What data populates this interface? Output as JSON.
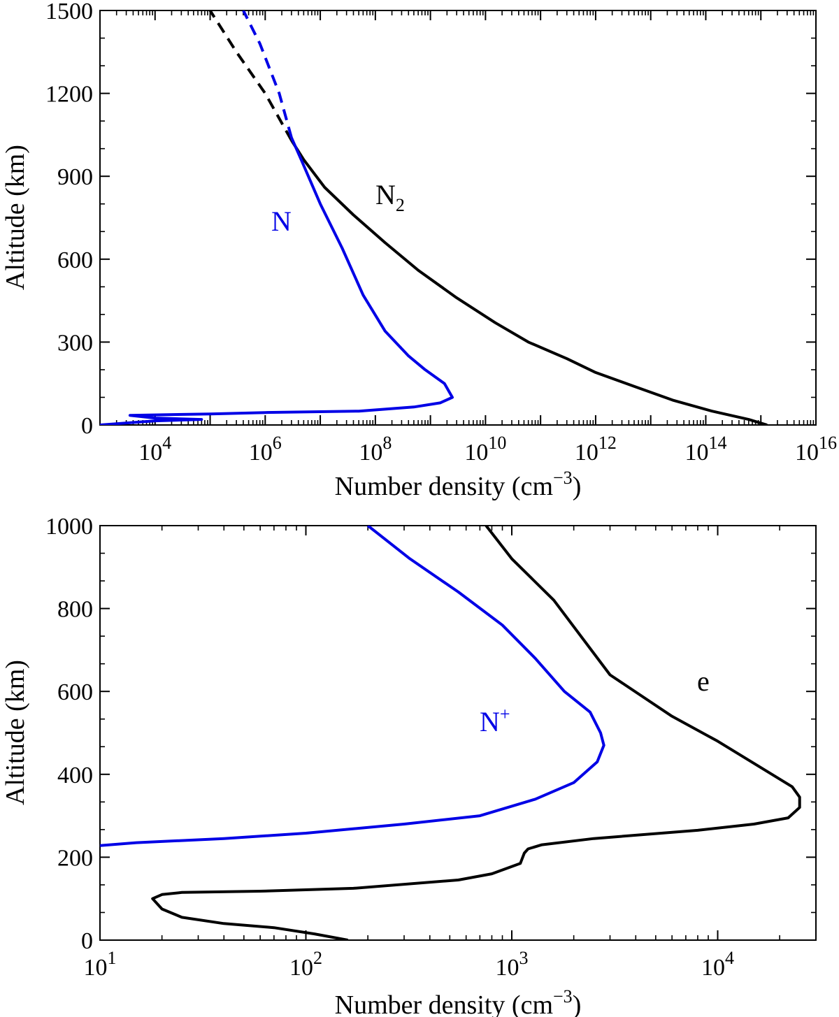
{
  "colors": {
    "black": "#000000",
    "blue": "#0000e6"
  },
  "chart_data": [
    {
      "type": "line",
      "xscale": "log",
      "xlim": [
        1000,
        1e+16
      ],
      "ylim": [
        0,
        1500
      ],
      "xlabel": "Number density (cm",
      "xlabel_sup": "−3",
      "xlabel_close": ")",
      "ylabel": "Altitude (km)",
      "yticks": [
        0,
        300,
        600,
        900,
        1200,
        1500
      ],
      "ytick_labels": [
        "0",
        "300",
        "600",
        "900",
        "1200",
        "1500"
      ],
      "xtick_exponents": [
        4,
        6,
        8,
        10,
        12,
        14,
        16
      ],
      "xtick_base": "10",
      "series": [
        {
          "name": "N2",
          "label_main": "N",
          "label_sub": "2",
          "color": "#000000",
          "x": [
            1300000000000000.0,
            600000000000000.0,
            130000000000000.0,
            25000000000000.0,
            5000000000000.0,
            1000000000000.0,
            300000000000.0,
            60000000000.0,
            15000000000.0,
            3000000000.0,
            600000000.0,
            150000000.0,
            40000000.0,
            12000000.0,
            5000000.0,
            3000000.0
          ],
          "y": [
            0,
            20,
            50,
            90,
            140,
            190,
            240,
            300,
            370,
            460,
            560,
            660,
            760,
            860,
            960,
            1030
          ],
          "extrap": {
            "x": [
              3000000.0,
              1000000.0,
              300000.0,
              100000.0
            ],
            "y": [
              1030,
              1200,
              1350,
              1500
            ]
          }
        },
        {
          "name": "N",
          "label_main": "N",
          "label_sub": "",
          "color": "#0000e6",
          "x": [
            1000,
            10000.0,
            70000.0,
            10000.0,
            3500,
            100000.0,
            1000000.0,
            50000000.0,
            500000000.0,
            1500000000.0,
            2500000000.0,
            1800000000.0,
            800000000.0,
            400000000.0,
            150000000.0,
            60000000.0,
            25000000.0,
            10000000.0,
            4500000.0,
            3000000.0
          ],
          "y": [
            0,
            15,
            20,
            25,
            35,
            40,
            45,
            50,
            65,
            80,
            100,
            150,
            200,
            250,
            340,
            470,
            640,
            800,
            960,
            1040
          ],
          "extrap": {
            "x": [
              3000000.0,
              1800000.0,
              800000.0,
              400000.0
            ],
            "y": [
              1040,
              1200,
              1380,
              1500
            ]
          }
        }
      ]
    },
    {
      "type": "line",
      "xscale": "log",
      "xlim": [
        10,
        30000
      ],
      "ylim": [
        0,
        1000
      ],
      "xlabel": "Number density (cm",
      "xlabel_sup": "−3",
      "xlabel_close": ")",
      "ylabel": "Altitude (km)",
      "yticks": [
        0,
        200,
        400,
        600,
        800,
        1000
      ],
      "ytick_labels": [
        "0",
        "200",
        "400",
        "600",
        "800",
        "1000"
      ],
      "xtick_exponents": [
        1,
        2,
        3,
        4
      ],
      "xtick_base": "10",
      "series": [
        {
          "name": "N+",
          "label_main": "N",
          "label_sup": "+",
          "color": "#0000e6",
          "x": [
            10,
            15,
            40,
            100,
            300,
            700,
            1300,
            2000,
            2600,
            2800,
            2700,
            2400,
            1800,
            1300,
            900,
            550,
            320,
            200
          ],
          "y": [
            228,
            235,
            245,
            258,
            280,
            300,
            340,
            380,
            430,
            470,
            500,
            550,
            600,
            680,
            760,
            840,
            920,
            1000
          ]
        },
        {
          "name": "e",
          "label_main": "e",
          "color": "#000000",
          "x": [
            160,
            110,
            70,
            40,
            25,
            20,
            18,
            20,
            25,
            60,
            170,
            550,
            800,
            1100,
            1150,
            1200,
            1400,
            2500,
            8000,
            15000,
            22000,
            25000,
            25000,
            23000,
            17000,
            10000,
            6000,
            3000,
            1600,
            1000,
            750
          ],
          "y": [
            0,
            15,
            30,
            40,
            55,
            75,
            100,
            110,
            115,
            118,
            125,
            145,
            160,
            185,
            210,
            220,
            230,
            245,
            265,
            280,
            295,
            320,
            345,
            370,
            410,
            480,
            540,
            640,
            820,
            920,
            1000
          ]
        }
      ]
    }
  ]
}
